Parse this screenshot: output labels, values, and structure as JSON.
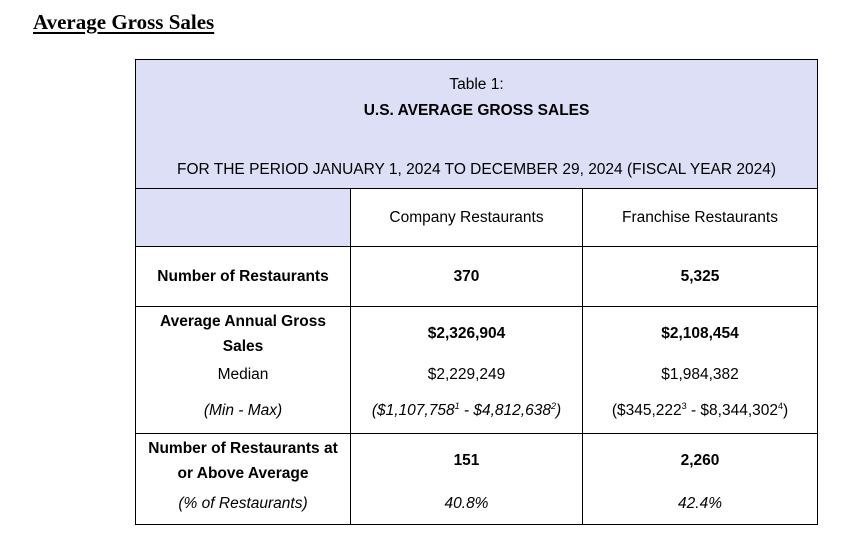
{
  "heading": "Average Gross Sales",
  "table": {
    "caption": "Table 1:",
    "title": "U.S. AVERAGE GROSS SALES",
    "period": "FOR THE PERIOD JANUARY 1, 2024 TO DECEMBER 29, 2024 (FISCAL YEAR 2024)",
    "columns": [
      "Company Restaurants",
      "Franchise Restaurants"
    ],
    "colors": {
      "header_shade": "#dcdff5",
      "border": "#000000"
    },
    "rows": {
      "num_restaurants": {
        "label": "Number of Restaurants",
        "company": "370",
        "franchise": "5,325"
      },
      "avg_sales": {
        "label_line1": "Average Annual Gross",
        "label_line2": "Sales",
        "median_label": "Median",
        "range_label": "(Min - Max)",
        "company": {
          "average": "$2,326,904",
          "median": "$2,229,249",
          "range_open": "($1,107,758",
          "range_note1": "1",
          "range_sep": " - $4,812,638",
          "range_note2": "2",
          "range_close": ")"
        },
        "franchise": {
          "average": "$2,108,454",
          "median": "$1,984,382",
          "range_open": "($345,222",
          "range_note1": "3",
          "range_sep": " - $8,344,302",
          "range_note2": "4",
          "range_close": ")"
        }
      },
      "at_or_above": {
        "label_line1": "Number of Restaurants at",
        "label_line2": "or Above Average",
        "pct_label": "(% of Restaurants)",
        "company": {
          "count": "151",
          "pct": "40.8%"
        },
        "franchise": {
          "count": "2,260",
          "pct": "42.4%"
        }
      }
    }
  }
}
